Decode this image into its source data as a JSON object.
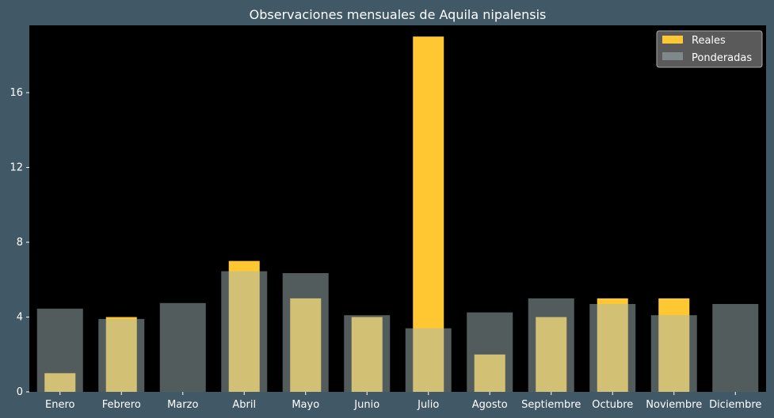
{
  "colors": {
    "background": "#415866",
    "plot_background": "#000000",
    "reales": "#ffc832",
    "ponderadas": "#a5b7b7",
    "ponderadas_opacity": 0.5,
    "text": "#ffffff"
  },
  "chart_data": {
    "type": "bar",
    "title": "Observaciones mensuales de Aquila nipalensis",
    "xlabel": "",
    "ylabel": "",
    "categories": [
      "Enero",
      "Febrero",
      "Marzo",
      "Abril",
      "Mayo",
      "Junio",
      "Julio",
      "Agosto",
      "Septiembre",
      "Octubre",
      "Noviembre",
      "Diciembre"
    ],
    "series": [
      {
        "name": "Reales",
        "values": [
          1,
          4,
          0,
          7,
          5,
          4,
          19,
          2,
          4,
          5,
          5,
          0
        ]
      },
      {
        "name": "Ponderadas",
        "values": [
          4.45,
          3.9,
          4.75,
          6.45,
          6.35,
          4.1,
          3.4,
          4.25,
          5.0,
          4.7,
          4.1,
          4.7
        ]
      }
    ],
    "ylim": [
      0,
      19.6
    ],
    "yticks": [
      0,
      4,
      8,
      12,
      16
    ],
    "grid": false,
    "legend_position": "top-right"
  }
}
